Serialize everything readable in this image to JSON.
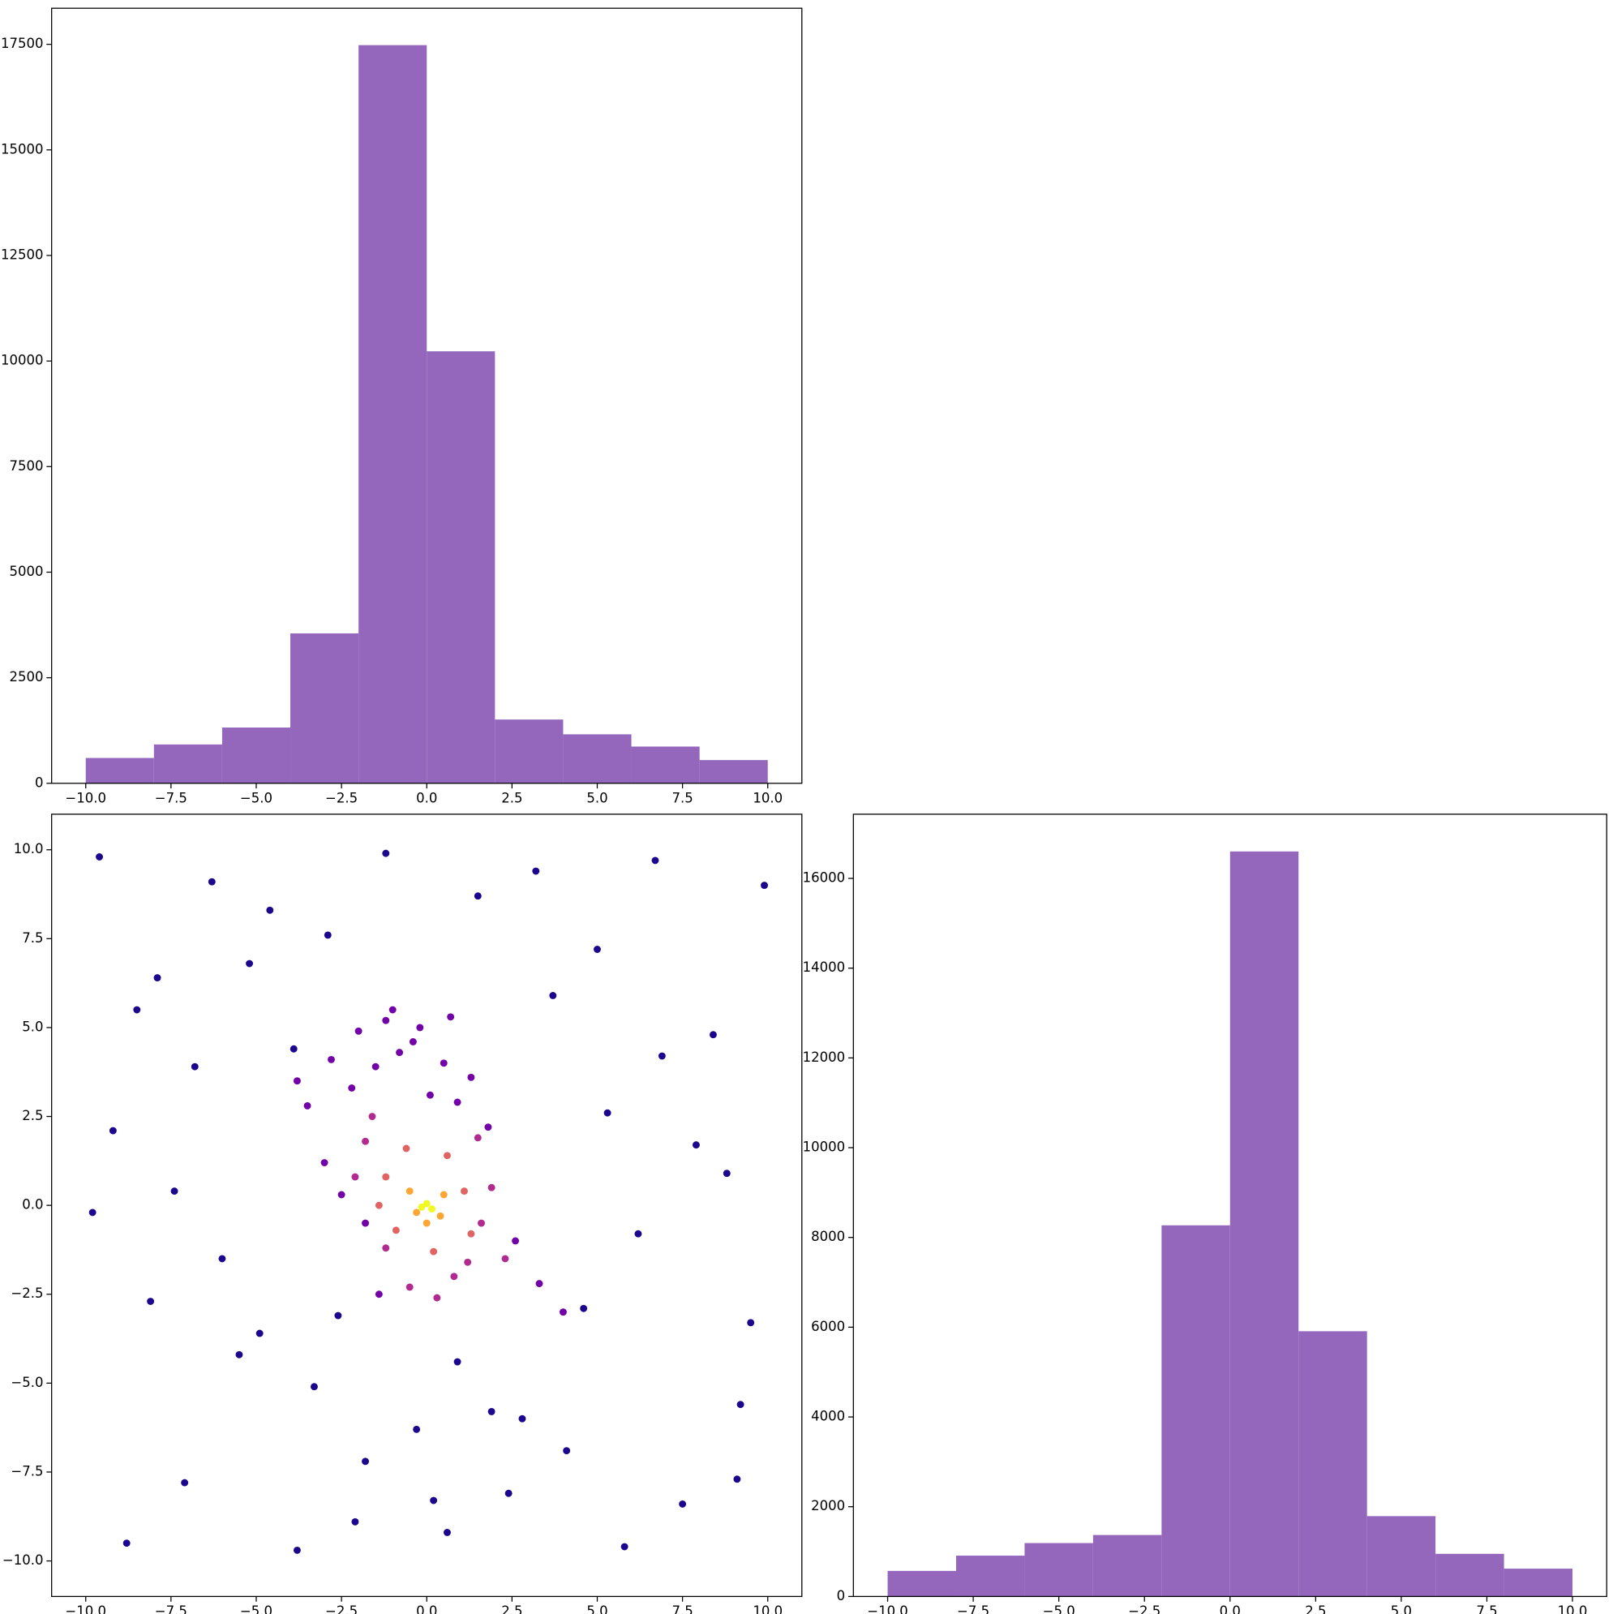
{
  "chart_data": [
    {
      "type": "histogram",
      "color": "#9467bd",
      "bins": [
        -10,
        -8,
        -6,
        -4,
        -2,
        0,
        2,
        4,
        6,
        8,
        10
      ],
      "values": [
        600,
        920,
        1320,
        3550,
        17480,
        10230,
        1510,
        1160,
        870,
        550
      ],
      "xlim": [
        -11,
        11
      ],
      "ylim": [
        0,
        18354
      ],
      "xticks": [
        {
          "value": -10,
          "label": "−10.0"
        },
        {
          "value": -7.5,
          "label": "−7.5"
        },
        {
          "value": -5,
          "label": "−5.0"
        },
        {
          "value": -2.5,
          "label": "−2.5"
        },
        {
          "value": 0,
          "label": "0.0"
        },
        2.5,
        {
          "value": 5,
          "label": "5.0"
        },
        7.5,
        {
          "value": 10,
          "label": "10.0"
        }
      ],
      "yticks": [
        0,
        2500,
        5000,
        7500,
        10000,
        12500,
        15000,
        17500
      ]
    },
    {
      "type": "scatter",
      "xlim": [
        -11,
        11
      ],
      "ylim": [
        -11,
        11
      ],
      "xticks": [
        {
          "value": -10,
          "label": "−10.0"
        },
        {
          "value": -7.5,
          "label": "−7.5"
        },
        {
          "value": -5,
          "label": "−5.0"
        },
        {
          "value": -2.5,
          "label": "−2.5"
        },
        {
          "value": 0,
          "label": "0.0"
        },
        2.5,
        {
          "value": 5,
          "label": "5.0"
        },
        7.5,
        {
          "value": 10,
          "label": "10.0"
        }
      ],
      "yticks": [
        {
          "value": -10,
          "label": "−10.0"
        },
        {
          "value": -7.5,
          "label": "−7.5"
        },
        {
          "value": -5,
          "label": "−5.0"
        },
        {
          "value": -2.5,
          "label": "−2.5"
        },
        {
          "value": 0,
          "label": "0.0"
        },
        2.5,
        {
          "value": 5,
          "label": "5.0"
        },
        7.5,
        {
          "value": 10,
          "label": "10.0"
        }
      ],
      "series": [
        {
          "color": "#1b068d",
          "x": [
            -9.6,
            -8.8,
            -7.9,
            -7.1,
            -6.3,
            -5.5,
            -4.6,
            -3.8,
            -2.9,
            -2.1,
            -1.2,
            -0.3,
            0.6,
            1.5,
            2.4,
            3.2,
            4.1,
            5.0,
            5.8,
            6.7,
            7.5,
            8.4,
            9.2,
            9.9,
            -9.2,
            -8.1,
            -7.4,
            -6.0,
            -4.9,
            -3.3,
            -1.8,
            0.9,
            2.8,
            4.6,
            6.2,
            7.9,
            9.5,
            -9.8,
            -6.8,
            -2.6,
            1.9,
            5.3,
            8.8,
            3.7,
            -5.2,
            9.1,
            -8.5,
            0.2,
            6.9,
            -3.9
          ],
          "values": [
            9.8,
            -9.5,
            6.4,
            -7.8,
            9.1,
            -4.2,
            8.3,
            -9.7,
            7.6,
            -8.9,
            9.9,
            -6.3,
            -9.2,
            8.7,
            -8.1,
            9.4,
            -6.9,
            7.2,
            -9.6,
            9.7,
            -8.4,
            4.8,
            -5.6,
            9.0,
            2.1,
            -2.7,
            0.4,
            -1.5,
            -3.6,
            -5.1,
            -7.2,
            -4.4,
            -6.0,
            -2.9,
            -0.8,
            1.7,
            -3.3,
            -0.2,
            3.9,
            -3.1,
            -5.8,
            2.6,
            0.9,
            5.9,
            6.8,
            -7.7,
            5.5,
            -8.3,
            4.2,
            4.4
          ]
        },
        {
          "color": "#7201a8",
          "x": [
            -3.5,
            -2.8,
            -2.0,
            -1.2,
            -0.4,
            0.5,
            1.3,
            -3.0,
            -2.2,
            -1.5,
            -0.8,
            0.1,
            0.9,
            -2.5,
            -1.8,
            -1.0,
            -0.2,
            0.7,
            1.8,
            2.6,
            3.3,
            -3.8,
            4.0,
            -1.4
          ],
          "values": [
            2.8,
            4.1,
            4.9,
            5.2,
            4.6,
            4.0,
            3.6,
            1.2,
            3.3,
            3.9,
            4.3,
            3.1,
            2.9,
            0.3,
            -0.5,
            5.5,
            5.0,
            5.3,
            2.2,
            -1.0,
            -2.2,
            3.5,
            -3.0,
            -2.5
          ]
        },
        {
          "color": "#b02a8f",
          "x": [
            -1.8,
            -1.2,
            1.2,
            1.6,
            1.9,
            0.8,
            -0.5,
            -2.1,
            2.3,
            0.3,
            1.5,
            -1.6
          ],
          "values": [
            1.8,
            -1.2,
            -1.6,
            -0.5,
            0.5,
            -2.0,
            -2.3,
            0.8,
            -1.5,
            -2.6,
            1.9,
            2.5
          ]
        },
        {
          "color": "#e16462",
          "x": [
            -1.2,
            -0.6,
            0.6,
            1.1,
            1.3,
            -0.9,
            0.2,
            -1.4
          ],
          "values": [
            0.8,
            1.6,
            1.4,
            0.4,
            -0.8,
            -0.7,
            -1.3,
            0.0
          ]
        },
        {
          "color": "#fca636",
          "x": [
            -0.5,
            0.5,
            0.0,
            -0.3,
            0.4
          ],
          "values": [
            0.4,
            0.3,
            -0.5,
            -0.2,
            -0.3
          ]
        },
        {
          "color": "#f0f921",
          "x": [
            0.0,
            0.15,
            -0.15
          ],
          "values": [
            0.05,
            -0.1,
            -0.05
          ]
        }
      ]
    },
    {
      "type": "histogram",
      "color": "#9467bd",
      "bins": [
        -10,
        -8,
        -6,
        -4,
        -2,
        0,
        2,
        4,
        6,
        8,
        10
      ],
      "values": [
        570,
        910,
        1190,
        1370,
        8270,
        16600,
        5910,
        1790,
        950,
        620
      ],
      "xlim": [
        -11,
        11
      ],
      "ylim": [
        0,
        17430
      ],
      "xticks": [
        {
          "value": -10,
          "label": "−10.0"
        },
        {
          "value": -7.5,
          "label": "−7.5"
        },
        {
          "value": -5,
          "label": "−5.0"
        },
        {
          "value": -2.5,
          "label": "−2.5"
        },
        {
          "value": 0,
          "label": "0.0"
        },
        2.5,
        {
          "value": 5,
          "label": "5.0"
        },
        7.5,
        {
          "value": 10,
          "label": "10.0"
        }
      ],
      "yticks": [
        0,
        2000,
        4000,
        6000,
        8000,
        10000,
        12000,
        14000,
        16000
      ]
    }
  ]
}
